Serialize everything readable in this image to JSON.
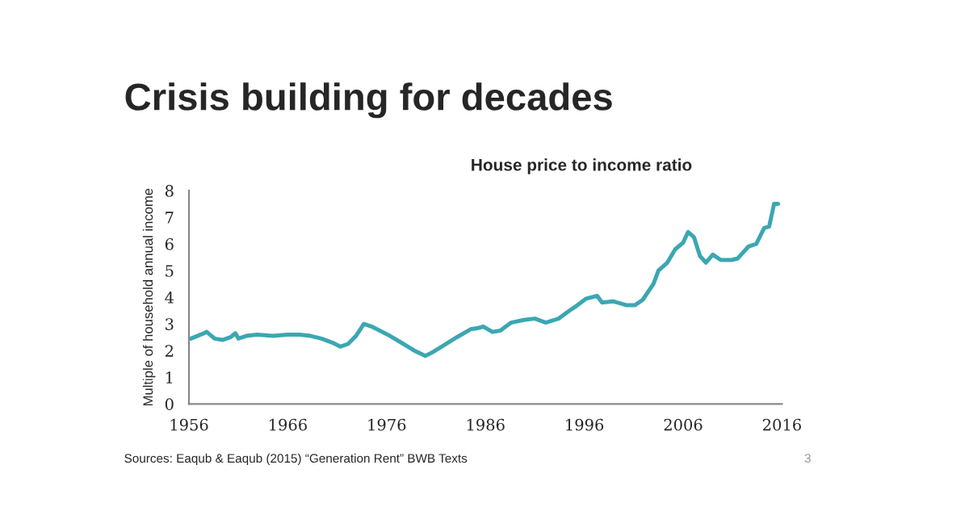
{
  "chart_data": {
    "type": "line",
    "title": "Crisis building for decades",
    "subtitle": "House price to income ratio",
    "ylabel": "Multiple of household annual income",
    "x": [
      1956.2,
      1957.2,
      1957.8,
      1958.6,
      1959.4,
      1960.2,
      1960.7,
      1961,
      1961.8,
      1962.9,
      1964.5,
      1966,
      1967.2,
      1968.3,
      1969.4,
      1970.5,
      1971.3,
      1972.1,
      1972.9,
      1973.7,
      1974.5,
      1976.1,
      1977.7,
      1978.8,
      1979.9,
      1980.7,
      1981.8,
      1983.1,
      1984.5,
      1985.3,
      1985.8,
      1986.7,
      1987.5,
      1988.6,
      1989.9,
      1991,
      1992.1,
      1993.4,
      1994.5,
      1995.3,
      1996.2,
      1997.3,
      1997.8,
      1998.9,
      2000.3,
      2001.1,
      2001.9,
      2003,
      2003.5,
      2004.4,
      2005.2,
      2006,
      2006.5,
      2007.1,
      2007.7,
      2008.3,
      2009,
      2009.8,
      2010.9,
      2011.5,
      2012.6,
      2013.4,
      2014.2,
      2014.7,
      2015.2,
      2015.6
    ],
    "series": [
      {
        "color": "#3ba7b2",
        "values": [
          2.45,
          2.6,
          2.7,
          2.45,
          2.4,
          2.5,
          2.65,
          2.45,
          2.55,
          2.6,
          2.55,
          2.6,
          2.6,
          2.55,
          2.45,
          2.3,
          2.15,
          2.25,
          2.55,
          3.0,
          2.9,
          2.6,
          2.25,
          2.0,
          1.8,
          1.95,
          2.2,
          2.5,
          2.8,
          2.85,
          2.9,
          2.7,
          2.75,
          3.05,
          3.15,
          3.2,
          3.05,
          3.2,
          3.5,
          3.7,
          3.95,
          4.05,
          3.8,
          3.85,
          3.7,
          3.7,
          3.9,
          4.5,
          5.0,
          5.3,
          5.8,
          6.05,
          6.45,
          6.25,
          5.55,
          5.3,
          5.6,
          5.4,
          5.4,
          5.45,
          5.9,
          6.0,
          6.6,
          6.65,
          7.5,
          7.5
        ]
      }
    ],
    "xlim": [
      1956,
      2016
    ],
    "xticks": [
      1956,
      1966,
      1976,
      1986,
      1996,
      2006,
      2016
    ],
    "ylim": [
      0,
      8
    ],
    "yticks": [
      0,
      1,
      2,
      3,
      4,
      5,
      6,
      7,
      8
    ],
    "grid": false,
    "legend": false,
    "marker": "none",
    "line_style": "solid",
    "annotations": [
      "Sources: Eaqub & Eaqub (2015) “Generation Rent” BWB Texts",
      "3"
    ]
  }
}
